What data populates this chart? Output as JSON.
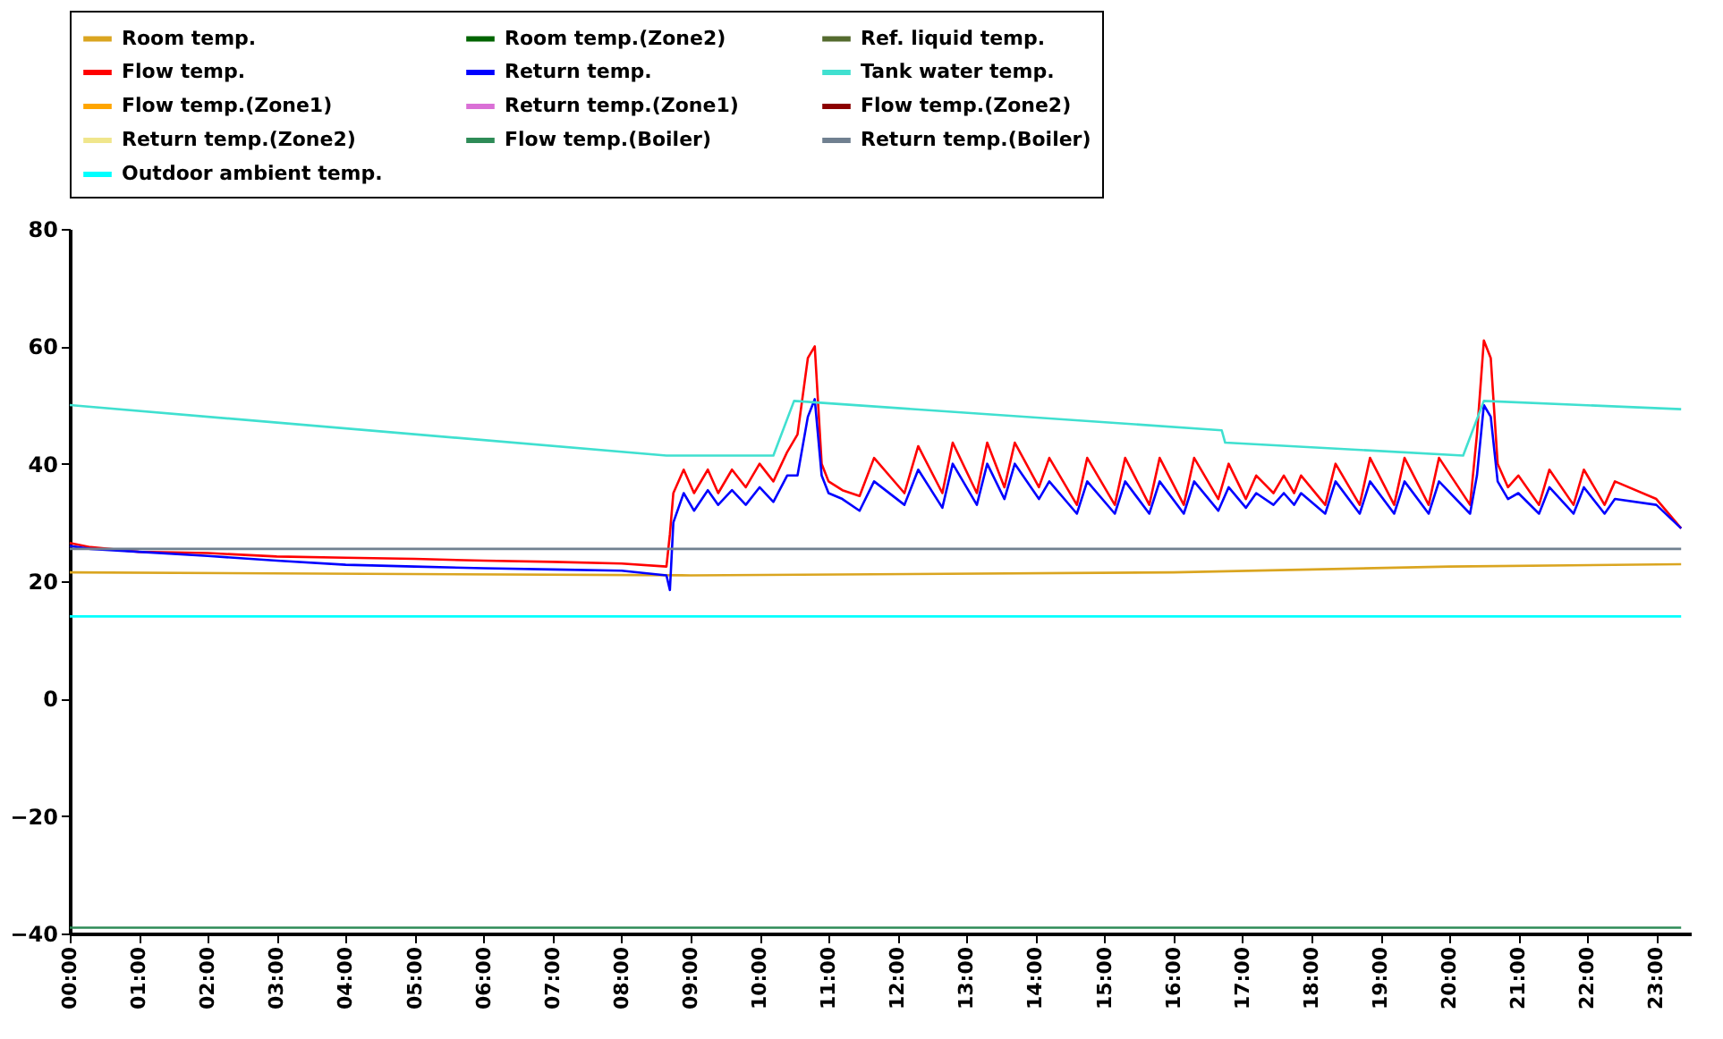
{
  "chart_data": {
    "type": "line",
    "legend": "top",
    "grid": false,
    "x": [
      0,
      0.3,
      1,
      2,
      3,
      4,
      5,
      6,
      7,
      8,
      8.65,
      8.7,
      8.75,
      8.9,
      9.05,
      9.25,
      9.4,
      9.6,
      9.8,
      10.0,
      10.2,
      10.4,
      10.55,
      10.7,
      10.8,
      10.9,
      11.0,
      11.2,
      11.45,
      11.66,
      12.1,
      12.3,
      12.65,
      12.8,
      13.15,
      13.3,
      13.55,
      13.7,
      14.05,
      14.2,
      14.6,
      14.75,
      15.15,
      15.3,
      15.65,
      15.8,
      16.15,
      16.3,
      16.65,
      16.8,
      17.05,
      17.2,
      17.45,
      17.6,
      17.75,
      17.85,
      18.2,
      18.35,
      18.7,
      18.85,
      19.2,
      19.35,
      19.7,
      19.85,
      20.3,
      20.4,
      20.5,
      20.6,
      20.7,
      20.85,
      21.0,
      21.3,
      21.45,
      21.8,
      21.95,
      22.25,
      22.4,
      23.0,
      23.36
    ],
    "xlim": [
      0,
      23.5
    ],
    "xticks": [
      {
        "value": 0,
        "label": "00:00"
      },
      {
        "value": 1,
        "label": "01:00"
      },
      {
        "value": 2,
        "label": "02:00"
      },
      {
        "value": 3,
        "label": "03:00"
      },
      {
        "value": 4,
        "label": "04:00"
      },
      {
        "value": 5,
        "label": "05:00"
      },
      {
        "value": 6,
        "label": "06:00"
      },
      {
        "value": 7,
        "label": "07:00"
      },
      {
        "value": 8,
        "label": "08:00"
      },
      {
        "value": 9,
        "label": "09:00"
      },
      {
        "value": 10,
        "label": "10:00"
      },
      {
        "value": 11,
        "label": "11:00"
      },
      {
        "value": 12,
        "label": "12:00"
      },
      {
        "value": 13,
        "label": "13:00"
      },
      {
        "value": 14,
        "label": "14:00"
      },
      {
        "value": 15,
        "label": "15:00"
      },
      {
        "value": 16,
        "label": "16:00"
      },
      {
        "value": 17,
        "label": "17:00"
      },
      {
        "value": 18,
        "label": "18:00"
      },
      {
        "value": 19,
        "label": "19:00"
      },
      {
        "value": 20,
        "label": "20:00"
      },
      {
        "value": 21,
        "label": "21:00"
      },
      {
        "value": 22,
        "label": "22:00"
      },
      {
        "value": 23,
        "label": "23:00"
      }
    ],
    "ylim": [
      -40,
      80
    ],
    "yticks": [
      -40,
      -20,
      0,
      20,
      40,
      60,
      80
    ],
    "series": [
      {
        "name": "Room temp.",
        "color": "#daa520",
        "x": [
          0,
          9,
          16,
          20,
          23.36
        ],
        "values": [
          21.5,
          21,
          21.5,
          22.5,
          22.9
        ]
      },
      {
        "name": "Room temp.(Zone2)",
        "color": "#006400",
        "values": [
          null,
          null,
          null,
          null,
          null,
          null,
          null,
          null,
          null,
          null,
          null,
          null,
          null,
          null,
          null,
          null,
          null,
          null,
          null,
          null,
          null,
          null,
          null,
          null,
          null,
          null,
          null,
          null,
          null,
          null,
          null,
          null,
          null,
          null,
          null,
          null,
          null,
          null,
          null,
          null,
          null,
          null,
          null,
          null,
          null,
          null,
          null,
          null,
          null,
          null,
          null,
          null,
          null,
          null,
          null,
          null,
          null,
          null,
          null,
          null,
          null,
          null,
          null,
          null,
          null,
          null,
          null,
          null,
          null,
          null,
          null,
          null,
          null,
          null,
          null,
          null,
          null,
          null,
          null
        ]
      },
      {
        "name": "Ref. liquid temp.",
        "color": "#556b2f",
        "values": [
          null,
          null,
          null,
          null,
          null,
          null,
          null,
          null,
          null,
          null,
          null,
          null,
          null,
          null,
          null,
          null,
          null,
          null,
          null,
          null,
          null,
          null,
          null,
          null,
          null,
          null,
          null,
          null,
          null,
          null,
          null,
          null,
          null,
          null,
          null,
          null,
          null,
          null,
          null,
          null,
          null,
          null,
          null,
          null,
          null,
          null,
          null,
          null,
          null,
          null,
          null,
          null,
          null,
          null,
          null,
          null,
          null,
          null,
          null,
          null,
          null,
          null,
          null,
          null,
          null,
          null,
          null,
          null,
          null,
          null,
          null,
          null,
          null,
          null,
          null,
          null,
          null,
          null,
          null
        ]
      },
      {
        "name": "Flow temp.",
        "color": "#ff0000",
        "values": [
          26.5,
          25.8,
          25,
          24.8,
          24.2,
          24,
          23.8,
          23.5,
          23.3,
          23,
          22.5,
          28,
          35,
          39,
          35,
          39,
          35,
          39,
          36,
          40,
          37,
          42,
          45,
          58,
          60,
          40,
          37,
          35.5,
          34.5,
          41,
          35,
          43,
          35,
          43.6,
          35,
          43.6,
          36,
          43.6,
          36,
          41,
          33,
          41,
          33,
          41,
          33,
          41,
          33,
          41,
          34,
          40,
          34,
          38,
          35,
          38,
          35,
          38,
          33,
          40,
          33,
          41,
          33,
          41,
          33,
          41,
          33,
          45,
          61,
          58,
          40,
          36,
          38,
          33,
          39,
          33,
          39,
          33,
          37,
          34,
          29
        ]
      },
      {
        "name": "Return temp.",
        "color": "#0000ff",
        "values": [
          26,
          25.5,
          25,
          24.3,
          23.5,
          22.8,
          22.5,
          22.2,
          22,
          21.8,
          21,
          18.5,
          30,
          35,
          32,
          35.5,
          33,
          35.5,
          33,
          36,
          33.5,
          38,
          38,
          48,
          51,
          38,
          35,
          34,
          32,
          37,
          33,
          39,
          32.5,
          40,
          33,
          40,
          34,
          40,
          34,
          37,
          31.5,
          37,
          31.5,
          37,
          31.5,
          37,
          31.5,
          37,
          32,
          36,
          32.5,
          35,
          33,
          35,
          33,
          35,
          31.5,
          37,
          31.5,
          37,
          31.5,
          37,
          31.5,
          37,
          31.5,
          38,
          50,
          48,
          37,
          34,
          35,
          31.5,
          36,
          31.5,
          36,
          31.5,
          34,
          33,
          29
        ]
      },
      {
        "name": "Tank water temp.",
        "color": "#40e0d0",
        "x": [
          0,
          8.65,
          10.2,
          10.5,
          16.7,
          16.75,
          20.2,
          20.5,
          23.36
        ],
        "values": [
          50,
          41.4,
          41.4,
          50.7,
          45.7,
          43.6,
          41.4,
          50.7,
          49.3
        ]
      },
      {
        "name": "Flow temp.(Zone1)",
        "color": "#ffa500",
        "values": [
          null,
          null,
          null,
          null,
          null,
          null,
          null,
          null,
          null,
          null,
          null,
          null,
          null,
          null,
          null,
          null,
          null,
          null,
          null,
          null,
          null,
          null,
          null,
          null,
          null,
          null,
          null,
          null,
          null,
          null,
          null,
          null,
          null,
          null,
          null,
          null,
          null,
          null,
          null,
          null,
          null,
          null,
          null,
          null,
          null,
          null,
          null,
          null,
          null,
          null,
          null,
          null,
          null,
          null,
          null,
          null,
          null,
          null,
          null,
          null,
          null,
          null,
          null,
          null,
          null,
          null,
          null,
          null,
          null,
          null,
          null,
          null,
          null,
          null,
          null,
          null,
          null,
          null,
          null
        ]
      },
      {
        "name": "Return temp.(Zone1)",
        "color": "#da70d6",
        "values": [
          null,
          null,
          null,
          null,
          null,
          null,
          null,
          null,
          null,
          null,
          null,
          null,
          null,
          null,
          null,
          null,
          null,
          null,
          null,
          null,
          null,
          null,
          null,
          null,
          null,
          null,
          null,
          null,
          null,
          null,
          null,
          null,
          null,
          null,
          null,
          null,
          null,
          null,
          null,
          null,
          null,
          null,
          null,
          null,
          null,
          null,
          null,
          null,
          null,
          null,
          null,
          null,
          null,
          null,
          null,
          null,
          null,
          null,
          null,
          null,
          null,
          null,
          null,
          null,
          null,
          null,
          null,
          null,
          null,
          null,
          null,
          null,
          null,
          null,
          null,
          null,
          null,
          null,
          null
        ]
      },
      {
        "name": "Flow temp.(Zone2)",
        "color": "#8b0000",
        "values": [
          null,
          null,
          null,
          null,
          null,
          null,
          null,
          null,
          null,
          null,
          null,
          null,
          null,
          null,
          null,
          null,
          null,
          null,
          null,
          null,
          null,
          null,
          null,
          null,
          null,
          null,
          null,
          null,
          null,
          null,
          null,
          null,
          null,
          null,
          null,
          null,
          null,
          null,
          null,
          null,
          null,
          null,
          null,
          null,
          null,
          null,
          null,
          null,
          null,
          null,
          null,
          null,
          null,
          null,
          null,
          null,
          null,
          null,
          null,
          null,
          null,
          null,
          null,
          null,
          null,
          null,
          null,
          null,
          null,
          null,
          null,
          null,
          null,
          null,
          null,
          null,
          null,
          null,
          null
        ]
      },
      {
        "name": "Return temp.(Zone2)",
        "color": "#f0e68c",
        "values": [
          null,
          null,
          null,
          null,
          null,
          null,
          null,
          null,
          null,
          null,
          null,
          null,
          null,
          null,
          null,
          null,
          null,
          null,
          null,
          null,
          null,
          null,
          null,
          null,
          null,
          null,
          null,
          null,
          null,
          null,
          null,
          null,
          null,
          null,
          null,
          null,
          null,
          null,
          null,
          null,
          null,
          null,
          null,
          null,
          null,
          null,
          null,
          null,
          null,
          null,
          null,
          null,
          null,
          null,
          null,
          null,
          null,
          null,
          null,
          null,
          null,
          null,
          null,
          null,
          null,
          null,
          null,
          null,
          null,
          null,
          null,
          null,
          null,
          null,
          null,
          null,
          null,
          null,
          null
        ]
      },
      {
        "name": "Flow temp.(Boiler)",
        "color": "#2e8b57",
        "x": [
          0,
          23.36
        ],
        "values": [
          -39,
          -39
        ]
      },
      {
        "name": "Return temp.(Boiler)",
        "color": "#708090",
        "x": [
          0,
          23.36
        ],
        "values": [
          25.5,
          25.5
        ]
      },
      {
        "name": "Outdoor ambient temp.",
        "color": "#00ffff",
        "x": [
          0,
          23.36
        ],
        "values": [
          14,
          14
        ]
      }
    ]
  }
}
